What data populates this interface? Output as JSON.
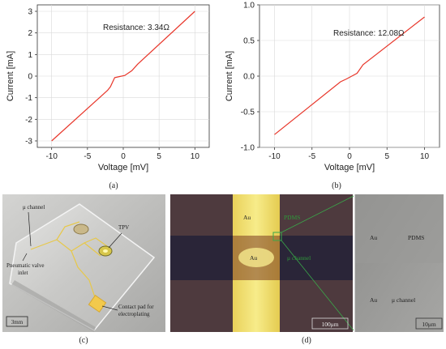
{
  "chart_data": [
    {
      "type": "line",
      "id": "a",
      "caption": "(a)",
      "xlabel": "Voltage [mV]",
      "ylabel": "Current [mA]",
      "xlim": [
        -12,
        12
      ],
      "ylim": [
        -3.3,
        3.3
      ],
      "xticks": [
        -10,
        -5,
        0,
        5,
        10
      ],
      "yticks": [
        -3,
        -2,
        -1,
        0,
        1,
        2,
        3
      ],
      "yticklabels": [
        "-3",
        "-2",
        "-1",
        "0",
        "1",
        "2",
        "3"
      ],
      "grid": true,
      "annotation": "Resistance: 3.34Ω",
      "color": "#e8362a",
      "x": [
        -10,
        -2.2,
        -1.8,
        -1.2,
        -0.5,
        0.2,
        1.2,
        2,
        10
      ],
      "y": [
        -3.0,
        -0.66,
        -0.5,
        -0.07,
        -0.02,
        0.03,
        0.25,
        0.55,
        3.0
      ]
    },
    {
      "type": "line",
      "id": "b",
      "caption": "(b)",
      "xlabel": "Voltage [mV]",
      "ylabel": "Current [mA]",
      "xlim": [
        -12,
        12
      ],
      "ylim": [
        -1.0,
        1.0
      ],
      "xticks": [
        -10,
        -5,
        0,
        5,
        10
      ],
      "yticks": [
        -1.0,
        -0.5,
        0.0,
        0.5,
        1.0
      ],
      "yticklabels": [
        "-1.0",
        "-0.5",
        "0.0",
        "0.5",
        "1.0"
      ],
      "grid": true,
      "annotation": "Resistance: 12.08Ω",
      "color": "#e8362a",
      "x": [
        -10,
        -1.2,
        -0.4,
        0.3,
        1.0,
        1.8,
        10
      ],
      "y": [
        -0.82,
        -0.08,
        -0.04,
        0.0,
        0.04,
        0.16,
        0.83
      ]
    }
  ],
  "photos": {
    "c": {
      "caption": "(c)",
      "labels": {
        "mu_channel": "μ channel",
        "tpv": "TPV",
        "pneumatic": "Pneumatic valve\ninlet",
        "contact": "Contact pad for\nelectroplating",
        "scale": "3mm"
      }
    },
    "d": {
      "caption": "(d)",
      "labels": {
        "au_top": "Au",
        "au_mid": "Au",
        "pdms": "PDMS",
        "mu_channel": "μ channel",
        "scale_left": "100μm",
        "zoom_au": "Au",
        "zoom_pdms": "PDMS",
        "zoom_au2": "Au",
        "zoom_channel": "μ channel",
        "scale_right": "10μm"
      }
    }
  },
  "colors": {
    "line": "#e8362a",
    "grid": "#d9d9d9",
    "gold": "#f2e66a",
    "micro_label": "#2e9a3a"
  }
}
